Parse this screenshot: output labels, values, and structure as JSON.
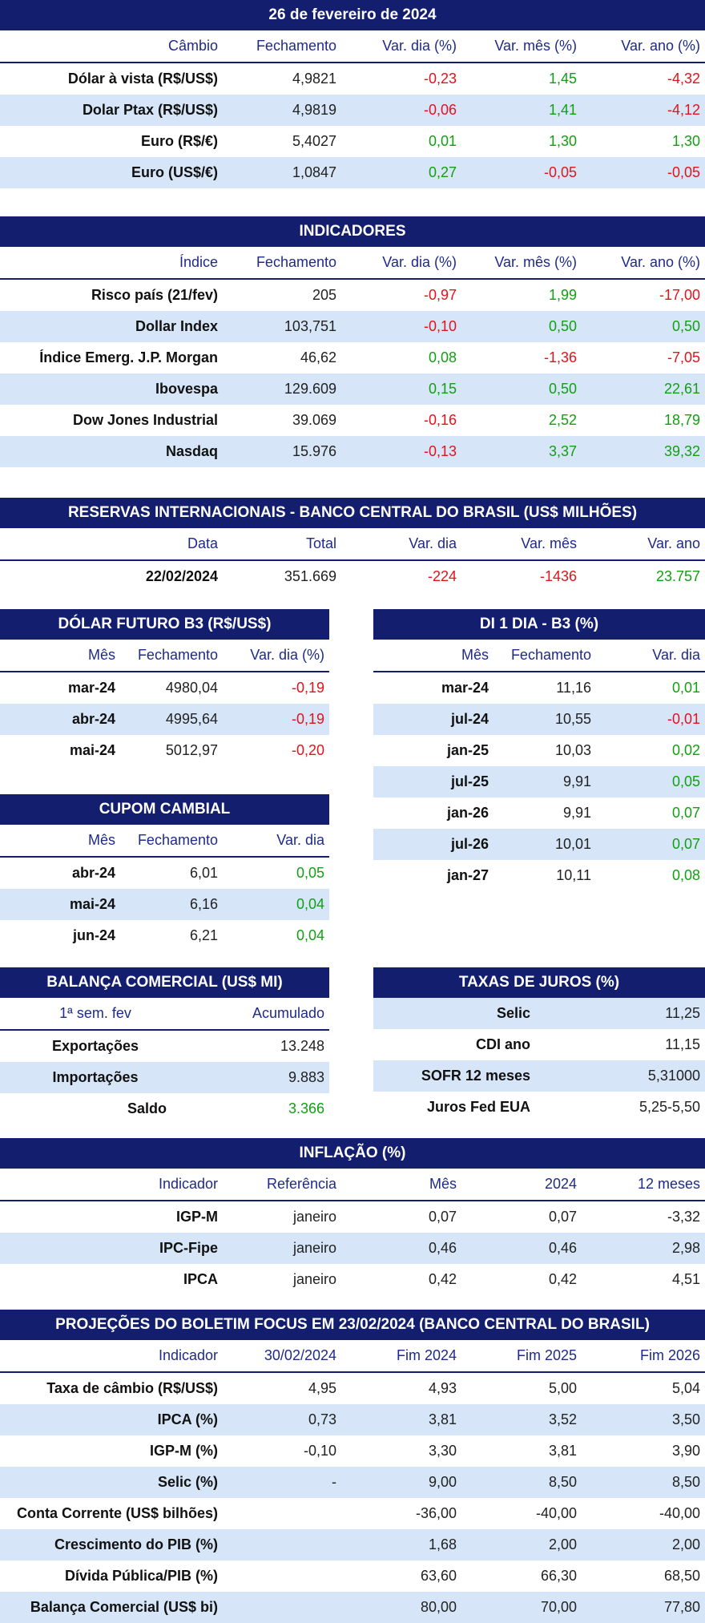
{
  "cambio": {
    "title": "26 de fevereiro de 2024",
    "headers": [
      "Câmbio",
      "Fechamento",
      "Var. dia (%)",
      "Var. mês (%)",
      "Var. ano (%)"
    ],
    "rows": [
      {
        "label": "Dólar à vista (R$/US$)",
        "close": "4,9821",
        "day": "-0,23",
        "month": "1,45",
        "year": "-4,32"
      },
      {
        "label": "Dolar Ptax (R$/US$)",
        "close": "4,9819",
        "day": "-0,06",
        "month": "1,41",
        "year": "-4,12"
      },
      {
        "label": "Euro (R$/€)",
        "close": "5,4027",
        "day": "0,01",
        "month": "1,30",
        "year": "1,30"
      },
      {
        "label": "Euro (US$/€)",
        "close": "1,0847",
        "day": "0,27",
        "month": "-0,05",
        "year": "-0,05"
      }
    ]
  },
  "indicadores": {
    "title": "INDICADORES",
    "headers": [
      "Índice",
      "Fechamento",
      "Var. dia (%)",
      "Var. mês (%)",
      "Var. ano (%)"
    ],
    "rows": [
      {
        "label": "Risco país (21/fev)",
        "close": "205",
        "day": "-0,97",
        "month": "1,99",
        "year": "-17,00"
      },
      {
        "label": "Dollar Index",
        "close": "103,751",
        "day": "-0,10",
        "month": "0,50",
        "year": "0,50"
      },
      {
        "label": "Índice Emerg. J.P. Morgan",
        "close": "46,62",
        "day": "0,08",
        "month": "-1,36",
        "year": "-7,05"
      },
      {
        "label": "Ibovespa",
        "close": "129.609",
        "day": "0,15",
        "month": "0,50",
        "year": "22,61"
      },
      {
        "label": "Dow Jones Industrial",
        "close": "39.069",
        "day": "-0,16",
        "month": "2,52",
        "year": "18,79"
      },
      {
        "label": "Nasdaq",
        "close": "15.976",
        "day": "-0,13",
        "month": "3,37",
        "year": "39,32"
      }
    ]
  },
  "reservas": {
    "title": "RESERVAS INTERNACIONAIS - BANCO CENTRAL DO BRASIL (US$ MILHÕES)",
    "headers": [
      "Data",
      "Total",
      "Var. dia",
      "Var. mês",
      "Var. ano"
    ],
    "rows": [
      {
        "label": "22/02/2024",
        "close": "351.669",
        "day": "-224",
        "month": "-1436",
        "year": "23.757"
      }
    ]
  },
  "dolar_futuro": {
    "title": "DÓLAR FUTURO B3 (R$/US$)",
    "headers": [
      "Mês",
      "Fechamento",
      "Var. dia (%)"
    ],
    "rows": [
      {
        "label": "mar-24",
        "close": "4980,04",
        "day": "-0,19"
      },
      {
        "label": "abr-24",
        "close": "4995,64",
        "day": "-0,19"
      },
      {
        "label": "mai-24",
        "close": "5012,97",
        "day": "-0,20"
      }
    ]
  },
  "di": {
    "title": "DI 1 DIA - B3 (%)",
    "headers": [
      "Mês",
      "Fechamento",
      "Var. dia"
    ],
    "rows": [
      {
        "label": "mar-24",
        "close": "11,16",
        "day": "0,01"
      },
      {
        "label": "jul-24",
        "close": "10,55",
        "day": "-0,01"
      },
      {
        "label": "jan-25",
        "close": "10,03",
        "day": "0,02"
      },
      {
        "label": "jul-25",
        "close": "9,91",
        "day": "0,05"
      },
      {
        "label": "jan-26",
        "close": "9,91",
        "day": "0,07"
      },
      {
        "label": "jul-26",
        "close": "10,01",
        "day": "0,07"
      },
      {
        "label": "jan-27",
        "close": "10,11",
        "day": "0,08"
      }
    ]
  },
  "cupom": {
    "title": "CUPOM CAMBIAL",
    "headers": [
      "Mês",
      "Fechamento",
      "Var. dia"
    ],
    "rows": [
      {
        "label": "abr-24",
        "close": "6,01",
        "day": "0,05"
      },
      {
        "label": "mai-24",
        "close": "6,16",
        "day": "0,04"
      },
      {
        "label": "jun-24",
        "close": "6,21",
        "day": "0,04"
      }
    ]
  },
  "balanca": {
    "title": "BALANÇA COMERCIAL (US$ MI)",
    "headers": [
      "1ª sem. fev",
      "Acumulado"
    ],
    "rows": [
      {
        "label": "Exportações",
        "value": "13.248"
      },
      {
        "label": "Importações",
        "value": "9.883"
      },
      {
        "label": "Saldo",
        "value": "3.366"
      }
    ]
  },
  "juros": {
    "title": "TAXAS DE JUROS (%)",
    "rows": [
      {
        "label": "Selic",
        "value": "11,25"
      },
      {
        "label": "CDI ano",
        "value": "11,15"
      },
      {
        "label": "SOFR 12 meses",
        "value": "5,31000"
      },
      {
        "label": "Juros Fed EUA",
        "value": "5,25-5,50"
      }
    ]
  },
  "inflacao": {
    "title": "INFLAÇÃO (%)",
    "headers": [
      "Indicador",
      "Referência",
      "Mês",
      "2024",
      "12 meses"
    ],
    "rows": [
      {
        "label": "IGP-M",
        "ref": "janeiro",
        "month": "0,07",
        "year": "0,07",
        "twelve": "-3,32"
      },
      {
        "label": "IPC-Fipe",
        "ref": "janeiro",
        "month": "0,46",
        "year": "0,46",
        "twelve": "2,98"
      },
      {
        "label": "IPCA",
        "ref": "janeiro",
        "month": "0,42",
        "year": "0,42",
        "twelve": "4,51"
      }
    ]
  },
  "focus": {
    "title": "PROJEÇÕES DO BOLETIM FOCUS EM 23/02/2024 (BANCO CENTRAL DO BRASIL)",
    "headers": [
      "Indicador",
      "30/02/2024",
      "Fim 2024",
      "Fim 2025",
      "Fim 2026"
    ],
    "rows": [
      {
        "label": "Taxa de câmbio (R$/US$)",
        "c1": "4,95",
        "c2": "4,93",
        "c3": "5,00",
        "c4": "5,04"
      },
      {
        "label": "IPCA (%)",
        "c1": "0,73",
        "c2": "3,81",
        "c3": "3,52",
        "c4": "3,50"
      },
      {
        "label": "IGP-M (%)",
        "c1": "-0,10",
        "c2": "3,30",
        "c3": "3,81",
        "c4": "3,90"
      },
      {
        "label": "Selic (%)",
        "c1": "-",
        "c2": "9,00",
        "c3": "8,50",
        "c4": "8,50"
      },
      {
        "label": "Conta Corrente (US$ bilhões)",
        "c1": "",
        "c2": "-36,00",
        "c3": "-40,00",
        "c4": "-40,00"
      },
      {
        "label": "Crescimento do PIB (%)",
        "c1": "",
        "c2": "1,68",
        "c3": "2,00",
        "c4": "2,00"
      },
      {
        "label": "Dívida Pública/PIB (%)",
        "c1": "",
        "c2": "63,60",
        "c3": "66,30",
        "c4": "68,50"
      },
      {
        "label": "Balança Comercial (US$ bi)",
        "c1": "",
        "c2": "80,00",
        "c3": "70,00",
        "c4": "77,80"
      }
    ]
  },
  "colors": {
    "header": "#131f6e",
    "shade": "#d6e6f8",
    "negative": "#e3121b",
    "positive": "#12a012"
  }
}
